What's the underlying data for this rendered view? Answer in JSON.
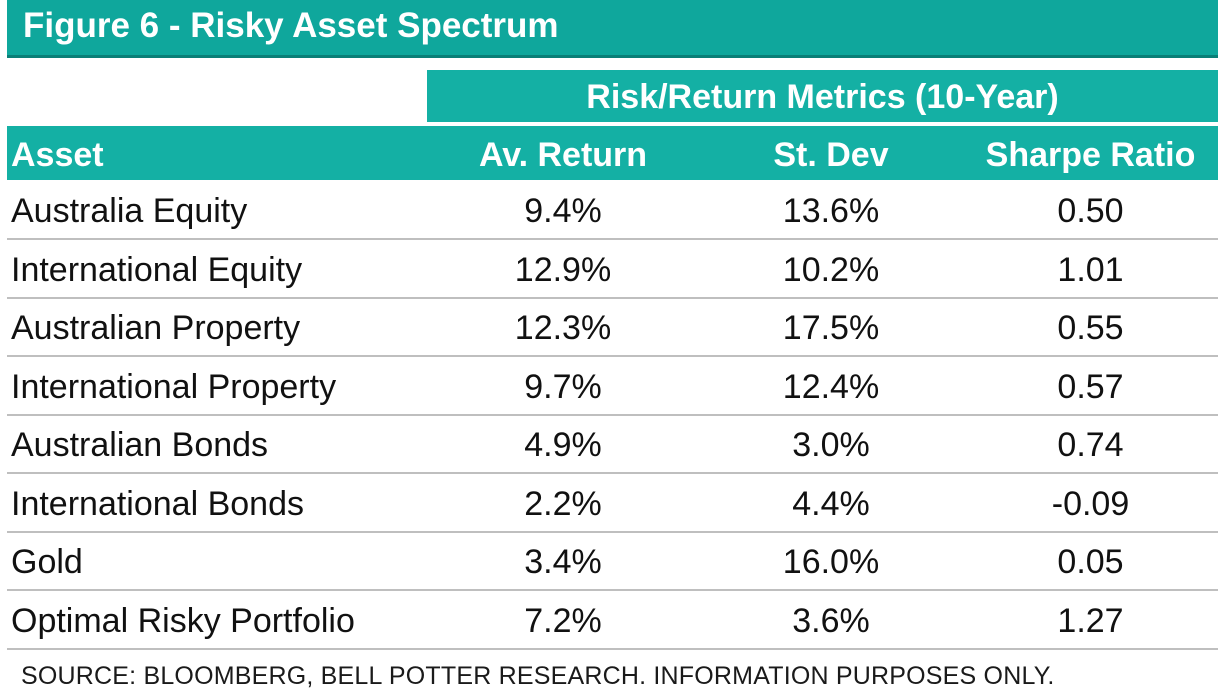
{
  "colors": {
    "header_teal": "#14b0a4",
    "title_teal": "#0fa79c",
    "rule_gray": "#bfbfbf"
  },
  "title": "Figure 6 - Risky Asset Spectrum",
  "source_note": "SOURCE: BLOOMBERG, BELL POTTER RESEARCH. INFORMATION PURPOSES ONLY.",
  "chart_data": {
    "type": "table",
    "title": "Figure 6 - Risky Asset Spectrum",
    "group_header": "Risk/Return Metrics (10-Year)",
    "columns": [
      "Asset",
      "Av. Return",
      "St. Dev",
      "Sharpe Ratio"
    ],
    "rows": [
      [
        "Australia Equity",
        "9.4%",
        "13.6%",
        "0.50"
      ],
      [
        "International Equity",
        "12.9%",
        "10.2%",
        "1.01"
      ],
      [
        "Australian Property",
        "12.3%",
        "17.5%",
        "0.55"
      ],
      [
        "International Property",
        "9.7%",
        "12.4%",
        "0.57"
      ],
      [
        "Australian Bonds",
        "4.9%",
        "3.0%",
        "0.74"
      ],
      [
        "International Bonds",
        "2.2%",
        "4.4%",
        "-0.09"
      ],
      [
        "Gold",
        "3.4%",
        "16.0%",
        "0.05"
      ],
      [
        "Optimal Risky Portfolio",
        "7.2%",
        "3.6%",
        "1.27"
      ]
    ]
  }
}
